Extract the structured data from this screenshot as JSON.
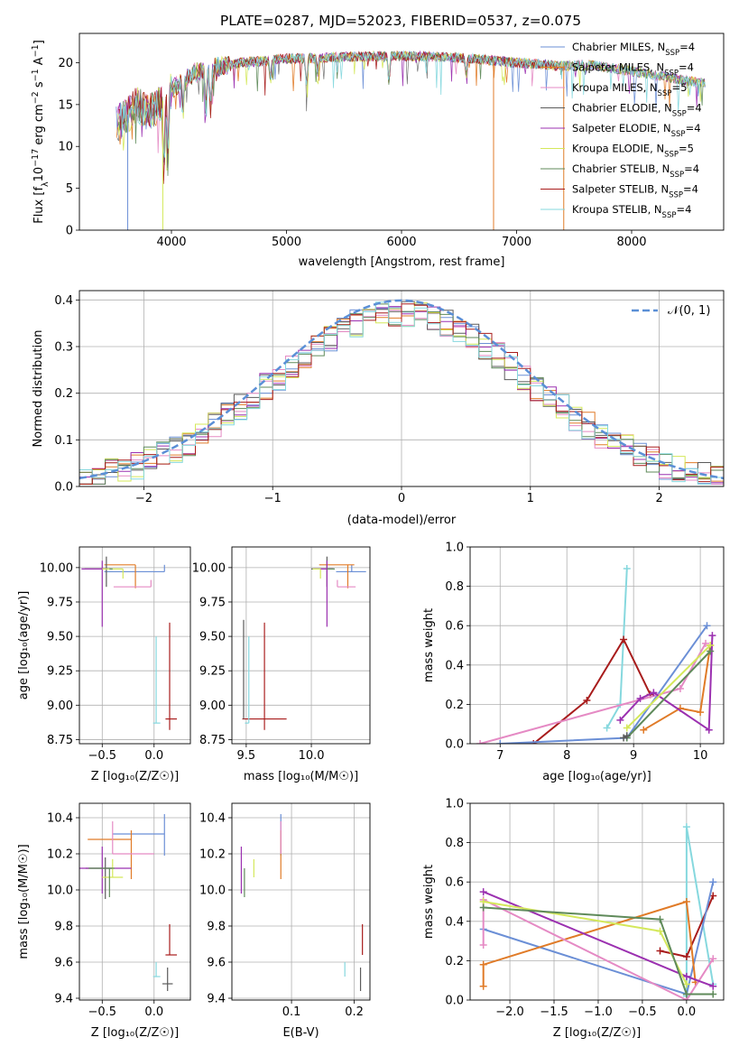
{
  "figure_title": "PLATE=0287, MJD=52023, FIBERID=0537, z=0.075",
  "colors": {
    "palette": [
      "#6b8fd6",
      "#e07b28",
      "#e58ac4",
      "#5b5b5b",
      "#9b30b0",
      "#d4e85a",
      "#5f8a5a",
      "#a81c1c",
      "#86d8de"
    ],
    "gaussian": "#5b8fd6"
  },
  "chart_data": [
    {
      "id": "spectrum",
      "type": "line",
      "title": "PLATE=0287, MJD=52023, FIBERID=0537, z=0.075",
      "xlabel": "wavelength [Angstrom, rest frame]",
      "ylabel": "Flux [fλ10⁻¹⁷ erg cm⁻² s⁻¹ A⁻¹]",
      "xlim": [
        3200,
        8800
      ],
      "ylim": [
        0,
        23.5
      ],
      "xticks": [
        4000,
        5000,
        6000,
        7000,
        8000
      ],
      "yticks": [
        0,
        5,
        10,
        15,
        20
      ],
      "grid": false,
      "legend_position": "upper-right",
      "series": [
        {
          "name": "Chabrier MILES, Nₛₛₚ=4",
          "color": "#6b8fd6"
        },
        {
          "name": "Salpeter MILES, Nₛₛₚ=4",
          "color": "#e07b28"
        },
        {
          "name": "Kroupa MILES, Nₛₛₚ=5",
          "color": "#e58ac4"
        },
        {
          "name": "Chabrier ELODIE, Nₛₛₚ=4",
          "color": "#5b5b5b"
        },
        {
          "name": "Salpeter ELODIE, Nₛₛₚ=4",
          "color": "#9b30b0"
        },
        {
          "name": "Kroupa ELODIE, Nₛₛₚ=5",
          "color": "#d4e85a"
        },
        {
          "name": "Chabrier STELIB, Nₛₛₚ=4",
          "color": "#5f8a5a"
        },
        {
          "name": "Salpeter STELIB, Nₛₛₚ=4",
          "color": "#a81c1c"
        },
        {
          "name": "Kroupa STELIB, Nₛₛₚ=4",
          "color": "#86d8de"
        }
      ],
      "continuum": {
        "x": [
          3500,
          3600,
          3700,
          3800,
          3900,
          4000,
          4100,
          4200,
          4400,
          4600,
          4800,
          5000,
          5200,
          5500,
          6000,
          6500,
          7000,
          7400,
          7600,
          8000,
          8500,
          8800
        ],
        "y": [
          12.5,
          13.5,
          15.0,
          14.0,
          15.0,
          16.8,
          17.8,
          18.8,
          19.5,
          20.0,
          20.2,
          20.5,
          20.5,
          20.7,
          20.8,
          20.6,
          20.0,
          19.6,
          19.8,
          19.0,
          17.8,
          17.3
        ]
      },
      "absorption_lines": [
        {
          "x": 3934,
          "depth": 0.55
        },
        {
          "x": 3969,
          "depth": 0.5
        },
        {
          "x": 4102,
          "depth": 0.2
        },
        {
          "x": 4300,
          "depth": 0.25
        },
        {
          "x": 4340,
          "depth": 0.25
        },
        {
          "x": 4861,
          "depth": 0.12
        },
        {
          "x": 5175,
          "depth": 0.15
        },
        {
          "x": 5270,
          "depth": 0.08
        },
        {
          "x": 5890,
          "depth": 0.15
        },
        {
          "x": 6563,
          "depth": 0.1
        },
        {
          "x": 7600,
          "depth": 0.05
        }
      ],
      "drop_lines": [
        {
          "x": 3620,
          "color": "#6b8fd6"
        },
        {
          "x": 3925,
          "color": "#d4e85a"
        },
        {
          "x": 6800,
          "color": "#e07b28"
        },
        {
          "x": 7410,
          "color": "#e07b28"
        }
      ]
    },
    {
      "id": "residuals",
      "type": "histogram",
      "xlabel": "(data-model)/error",
      "ylabel": "Normed distribution",
      "xlim": [
        -2.5,
        2.5
      ],
      "ylim": [
        0,
        0.42
      ],
      "xticks": [
        -2,
        -1,
        0,
        1,
        2
      ],
      "yticks": [
        0.0,
        0.1,
        0.2,
        0.3,
        0.4
      ],
      "grid": true,
      "legend_position": "upper-right",
      "legend_label": "𝒩(0, 1)",
      "bins": 50,
      "gaussian": {
        "mean": 0,
        "sigma": 1,
        "peak": 0.399
      }
    },
    {
      "id": "age-vs-Z",
      "type": "errorbar",
      "xlabel": "Z [log₁₀(Z/Z☉)]",
      "ylabel": "age  [log₁₀(age/yr)]",
      "xlim": [
        -0.72,
        0.35
      ],
      "ylim": [
        8.72,
        10.15
      ],
      "xticks": [
        -0.5,
        0.0
      ],
      "yticks": [
        8.75,
        9.0,
        9.25,
        9.5,
        9.75,
        10.0
      ],
      "grid": true,
      "points": [
        {
          "color": "#6b8fd6",
          "x": 0.1,
          "y": 9.97,
          "xerr": [
            0.58,
            0.0
          ],
          "yerr": [
            0.0,
            0.05
          ]
        },
        {
          "color": "#e07b28",
          "x": -0.18,
          "y": 10.02,
          "xerr": [
            0.3,
            0.0
          ],
          "yerr": [
            0.17,
            0.0
          ]
        },
        {
          "color": "#e58ac4",
          "x": -0.03,
          "y": 9.86,
          "xerr": [
            0.36,
            0.0
          ],
          "yerr": [
            0.0,
            0.05
          ]
        },
        {
          "color": "#5b5b5b",
          "x": -0.46,
          "y": 9.99,
          "xerr": [
            0.21,
            0.04
          ],
          "yerr": [
            0.13,
            0.09
          ]
        },
        {
          "color": "#9b30b0",
          "x": -0.5,
          "y": 9.99,
          "xerr": [
            0.2,
            0.05
          ],
          "yerr": [
            0.42,
            0.06
          ]
        },
        {
          "color": "#d4e85a",
          "x": -0.3,
          "y": 9.99,
          "xerr": [
            0.2,
            0.0
          ],
          "yerr": [
            0.07,
            0.0
          ]
        },
        {
          "color": "#5f8a5a",
          "x": -0.43,
          "y": 9.99,
          "xerr": [
            0.0,
            0.03
          ],
          "yerr": [
            0.0,
            0.0
          ]
        },
        {
          "color": "#a81c1c",
          "x": 0.15,
          "y": 8.9,
          "xerr": [
            0.04,
            0.07
          ],
          "yerr": [
            0.08,
            0.7
          ]
        },
        {
          "color": "#86d8de",
          "x": 0.02,
          "y": 8.87,
          "xerr": [
            0.03,
            0.04
          ],
          "yerr": [
            0.0,
            0.63
          ]
        }
      ]
    },
    {
      "id": "age-vs-mass",
      "type": "errorbar",
      "xlabel": "mass [log₁₀(M/M☉)]",
      "ylabel": "",
      "xlim": [
        9.39,
        10.45
      ],
      "ylim": [
        8.72,
        10.15
      ],
      "xticks": [
        9.5,
        10.0
      ],
      "yticks": [
        8.75,
        9.0,
        9.25,
        9.5,
        9.75,
        10.0
      ],
      "grid": true,
      "points": [
        {
          "color": "#6b8fd6",
          "x": 10.31,
          "y": 9.97,
          "xerr": [
            0.12,
            0.11
          ],
          "yerr": [
            0.0,
            0.05
          ]
        },
        {
          "color": "#e07b28",
          "x": 10.28,
          "y": 10.02,
          "xerr": [
            0.22,
            0.05
          ],
          "yerr": [
            0.17,
            0.0
          ]
        },
        {
          "color": "#e58ac4",
          "x": 10.2,
          "y": 9.86,
          "xerr": [
            0.0,
            0.14
          ],
          "yerr": [
            0.0,
            0.05
          ]
        },
        {
          "color": "#5b5b5b",
          "x": 10.12,
          "y": 9.99,
          "xerr": [
            0.12,
            0.05
          ],
          "yerr": [
            0.13,
            0.09
          ]
        },
        {
          "color": "#9b30b0",
          "x": 10.12,
          "y": 9.99,
          "xerr": [
            0.1,
            0.05
          ],
          "yerr": [
            0.42,
            0.06
          ]
        },
        {
          "color": "#d4e85a",
          "x": 10.07,
          "y": 9.99,
          "xerr": [
            0.06,
            0.0
          ],
          "yerr": [
            0.07,
            0.0
          ]
        },
        {
          "color": "#5f8a5a",
          "x": 10.12,
          "y": 9.99,
          "xerr": [
            0.0,
            0.06
          ],
          "yerr": [
            0.0,
            0.0
          ]
        },
        {
          "color": "#a81c1c",
          "x": 9.64,
          "y": 8.9,
          "xerr": [
            0.17,
            0.17
          ],
          "yerr": [
            0.08,
            0.7
          ]
        },
        {
          "color": "#86d8de",
          "x": 9.52,
          "y": 8.87,
          "xerr": [
            0.03,
            0.0
          ],
          "yerr": [
            0.0,
            0.63
          ]
        },
        {
          "color": "#5b5b5b",
          "x": 9.48,
          "y": 8.9,
          "xerr": [
            0.0,
            0.0
          ],
          "yerr": [
            0.0,
            0.72
          ]
        }
      ]
    },
    {
      "id": "mass-weight-vs-age",
      "type": "line",
      "xlabel": "age  [log₁₀(age/yr)]",
      "ylabel": "mass weight",
      "xlim": [
        6.55,
        10.35
      ],
      "ylim": [
        0.0,
        1.0
      ],
      "xticks": [
        7,
        8,
        9,
        10
      ],
      "yticks": [
        0.0,
        0.2,
        0.4,
        0.6,
        0.8,
        1.0
      ],
      "grid": true,
      "series": [
        {
          "color": "#86d8de",
          "x": [
            8.6,
            8.8,
            8.9
          ],
          "y": [
            0.08,
            0.2,
            0.89
          ]
        },
        {
          "color": "#a81c1c",
          "x": [
            7.5,
            8.3,
            8.85,
            9.25
          ],
          "y": [
            0.0,
            0.22,
            0.53,
            0.25
          ]
        },
        {
          "color": "#6b8fd6",
          "x": [
            7.0,
            8.9,
            10.1
          ],
          "y": [
            0.0,
            0.03,
            0.6
          ]
        },
        {
          "color": "#e07b28",
          "x": [
            9.15,
            9.7,
            10.0,
            10.15
          ],
          "y": [
            0.07,
            0.18,
            0.16,
            0.5
          ]
        },
        {
          "color": "#e58ac4",
          "x": [
            6.7,
            9.7,
            10.08
          ],
          "y": [
            0.0,
            0.28,
            0.51
          ]
        },
        {
          "color": "#9b30b0",
          "x": [
            8.8,
            9.1,
            9.3,
            10.13,
            10.18
          ],
          "y": [
            0.12,
            0.23,
            0.26,
            0.07,
            0.55
          ]
        },
        {
          "color": "#d4e85a",
          "x": [
            8.9,
            10.15
          ],
          "y": [
            0.08,
            0.5
          ]
        },
        {
          "color": "#5f8a5a",
          "x": [
            8.9,
            10.15
          ],
          "y": [
            0.03,
            0.47
          ]
        },
        {
          "color": "#5b5b5b",
          "x": [
            8.85,
            8.9
          ],
          "y": [
            0.03,
            0.04
          ]
        }
      ]
    },
    {
      "id": "mass-vs-Z",
      "type": "errorbar",
      "xlabel": "Z [log₁₀(Z/Z☉)]",
      "ylabel": "mass [log₁₀(M/M☉)]",
      "xlim": [
        -0.72,
        0.35
      ],
      "ylim": [
        9.39,
        10.48
      ],
      "xticks": [
        -0.5,
        0.0
      ],
      "yticks": [
        9.4,
        9.6,
        9.8,
        10.0,
        10.2,
        10.4
      ],
      "grid": true,
      "points": [
        {
          "color": "#6b8fd6",
          "x": 0.1,
          "y": 10.31,
          "xerr": [
            0.5,
            0.0
          ],
          "yerr": [
            0.12,
            0.11
          ]
        },
        {
          "color": "#e07b28",
          "x": -0.22,
          "y": 10.28,
          "xerr": [
            0.42,
            0.0
          ],
          "yerr": [
            0.22,
            0.05
          ]
        },
        {
          "color": "#e58ac4",
          "x": -0.4,
          "y": 10.2,
          "xerr": [
            0.0,
            0.4
          ],
          "yerr": [
            0.0,
            0.18
          ]
        },
        {
          "color": "#5b5b5b",
          "x": -0.47,
          "y": 10.12,
          "xerr": [
            0.19,
            0.07
          ],
          "yerr": [
            0.17,
            0.06
          ]
        },
        {
          "color": "#9b30b0",
          "x": -0.5,
          "y": 10.12,
          "xerr": [
            0.22,
            0.28
          ],
          "yerr": [
            0.14,
            0.12
          ]
        },
        {
          "color": "#d4e85a",
          "x": -0.4,
          "y": 10.07,
          "xerr": [
            0.1,
            0.1
          ],
          "yerr": [
            0.0,
            0.1
          ]
        },
        {
          "color": "#5f8a5a",
          "x": -0.43,
          "y": 10.12,
          "xerr": [
            0.2,
            0.05
          ],
          "yerr": [
            0.16,
            0.0
          ]
        },
        {
          "color": "#a81c1c",
          "x": 0.15,
          "y": 9.64,
          "xerr": [
            0.04,
            0.07
          ],
          "yerr": [
            0.0,
            0.17
          ]
        },
        {
          "color": "#86d8de",
          "x": 0.02,
          "y": 9.52,
          "xerr": [
            0.03,
            0.04
          ],
          "yerr": [
            0.0,
            0.08
          ]
        },
        {
          "color": "#5b5b5b",
          "x": 0.13,
          "y": 9.48,
          "xerr": [
            0.05,
            0.05
          ],
          "yerr": [
            0.04,
            0.09
          ]
        }
      ]
    },
    {
      "id": "mass-vs-EBV",
      "type": "errorbar",
      "xlabel": "E(B-V)",
      "ylabel": "",
      "xlim": [
        0.005,
        0.225
      ],
      "ylim": [
        9.39,
        10.48
      ],
      "xticks": [
        0.1,
        0.2
      ],
      "yticks": [
        9.4,
        9.6,
        9.8,
        10.0,
        10.2,
        10.4
      ],
      "grid": true,
      "points": [
        {
          "color": "#6b8fd6",
          "x": 0.083,
          "y": 10.31,
          "xerr": [
            0.0,
            0.0
          ],
          "yerr": [
            0.12,
            0.11
          ]
        },
        {
          "color": "#e07b28",
          "x": 0.083,
          "y": 10.28,
          "xerr": [
            0.0,
            0.0
          ],
          "yerr": [
            0.22,
            0.05
          ]
        },
        {
          "color": "#e58ac4",
          "x": 0.083,
          "y": 10.2,
          "xerr": [
            0.0,
            0.0
          ],
          "yerr": [
            0.0,
            0.18
          ]
        },
        {
          "color": "#9b30b0",
          "x": 0.02,
          "y": 10.12,
          "xerr": [
            0.0,
            0.0
          ],
          "yerr": [
            0.14,
            0.12
          ]
        },
        {
          "color": "#5f8a5a",
          "x": 0.025,
          "y": 10.12,
          "xerr": [
            0.0,
            0.0
          ],
          "yerr": [
            0.16,
            0.0
          ]
        },
        {
          "color": "#d4e85a",
          "x": 0.04,
          "y": 10.07,
          "xerr": [
            0.0,
            0.0
          ],
          "yerr": [
            0.0,
            0.1
          ]
        },
        {
          "color": "#a81c1c",
          "x": 0.213,
          "y": 9.64,
          "xerr": [
            0.0,
            0.0
          ],
          "yerr": [
            0.0,
            0.17
          ]
        },
        {
          "color": "#86d8de",
          "x": 0.185,
          "y": 9.52,
          "xerr": [
            0.0,
            0.0
          ],
          "yerr": [
            0.0,
            0.08
          ]
        },
        {
          "color": "#5b5b5b",
          "x": 0.21,
          "y": 9.48,
          "xerr": [
            0.0,
            0.0
          ],
          "yerr": [
            0.04,
            0.09
          ]
        }
      ]
    },
    {
      "id": "mass-weight-vs-Z",
      "type": "line",
      "xlabel": "Z [log₁₀(Z/Z☉)]",
      "ylabel": "mass weight",
      "xlim": [
        -2.45,
        0.42
      ],
      "ylim": [
        0.0,
        1.0
      ],
      "xticks": [
        -2.0,
        -1.5,
        -1.0,
        -0.5,
        0.0
      ],
      "yticks": [
        0.0,
        0.2,
        0.4,
        0.6,
        0.8,
        1.0
      ],
      "grid": true,
      "series": [
        {
          "color": "#86d8de",
          "x": [
            0.0,
            0.0,
            0.3
          ],
          "y": [
            0.02,
            0.88,
            0.08
          ]
        },
        {
          "color": "#a81c1c",
          "x": [
            -0.3,
            0.0,
            0.3
          ],
          "y": [
            0.25,
            0.22,
            0.53
          ]
        },
        {
          "color": "#6b8fd6",
          "x": [
            -2.3,
            0.0,
            0.3
          ],
          "y": [
            0.36,
            0.03,
            0.6
          ]
        },
        {
          "color": "#e07b28",
          "x": [
            -2.3,
            -2.3,
            0.0,
            0.1
          ],
          "y": [
            0.07,
            0.18,
            0.5,
            0.09
          ]
        },
        {
          "color": "#e58ac4",
          "x": [
            -2.3,
            -2.3,
            0.0,
            0.3
          ],
          "y": [
            0.28,
            0.51,
            0.0,
            0.21
          ]
        },
        {
          "color": "#9b30b0",
          "x": [
            -2.3,
            0.0,
            0.3
          ],
          "y": [
            0.55,
            0.12,
            0.07
          ]
        },
        {
          "color": "#d4e85a",
          "x": [
            -2.3,
            -0.3,
            0.0
          ],
          "y": [
            0.5,
            0.35,
            0.08
          ]
        },
        {
          "color": "#5f8a5a",
          "x": [
            -2.3,
            -0.3,
            0.0,
            0.3
          ],
          "y": [
            0.47,
            0.41,
            0.03,
            0.03
          ]
        }
      ]
    }
  ]
}
